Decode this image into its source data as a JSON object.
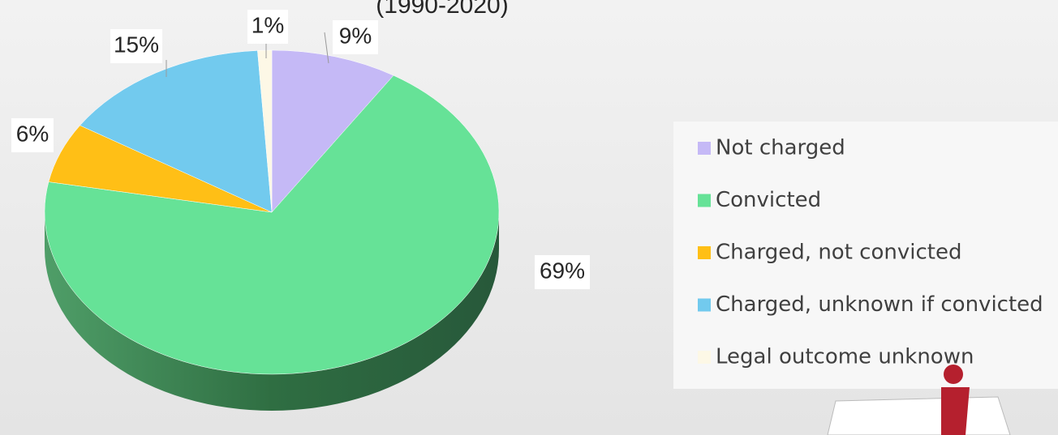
{
  "chart_data": {
    "type": "pie",
    "subtitle": "(1990-2020)",
    "categories": [
      "Not charged",
      "Convicted",
      "Charged, not convicted",
      "Charged, unknown if convicted",
      "Legal outcome unknown"
    ],
    "values": [
      9,
      69,
      6,
      15,
      1
    ],
    "value_labels": [
      "9%",
      "69%",
      "6%",
      "15%",
      "1%"
    ],
    "colors": [
      "#c5b9f6",
      "#66e297",
      "#ffbf16",
      "#72caee",
      "#fdf8e6"
    ],
    "legend": "right"
  }
}
